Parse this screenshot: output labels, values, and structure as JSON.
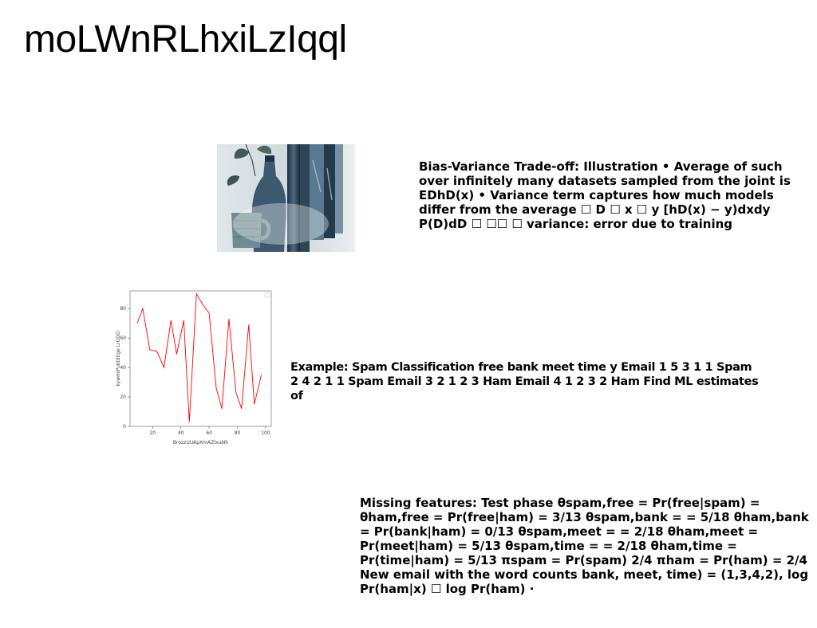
{
  "page": {
    "title": "moLWnRLhxiLzIqql"
  },
  "photo": {
    "icon": "photo-still-life-bottle-and-mug"
  },
  "paragraphs": {
    "bias_variance": "Bias-Variance Trade-off: Illustration • Average of such over infinitely many datasets sampled from the joint is EDhD(x) • Variance term captures how much models differ from the average ☐ D ☐ x ☐ y [hD(x) − y)dxdy P(D)dD ☐ ☐☐ ☐ variance: error due to training",
    "spam_example": "Example: Spam Classification free bank meet time y Email 1 5 3 1 1 Spam 2 4 2 1 1 Spam Email 3 2 1 2 3 Ham Email 4 1 2 3 2 Ham Find ML estimates of",
    "missing_features": "Missing features: Test phase θspam,free = Pr(free|spam) = θham,free = Pr(free|ham) = 3/13 θspam,bank = = 5/18 θham,bank = Pr(bank|ham) = 0/13 θspam,meet = = 2/18 θham,meet = Pr(meet|ham) = 5/13 θspam,time = = 2/18 θham,time = Pr(time|ham) = 5/13 πspam = Pr(spam) 2/4 πham = Pr(ham) = 2/4 New email with the word counts bank, meet, time) = (1,3,4,2), log Pr(ham|x) ☐ log Pr(ham) ·"
  },
  "chart_data": {
    "type": "line",
    "xlabel": "BrozzUUApXmAZtxaNh",
    "ylabel": "kywmiPuktdEge LrGOD",
    "xlim": [
      4,
      104
    ],
    "ylim": [
      0,
      92
    ],
    "x_ticks": [
      "20",
      "40",
      "60",
      "80",
      "100"
    ],
    "y_ticks": [
      "0",
      "20",
      "40",
      "60",
      "80"
    ],
    "series": [
      {
        "color": "#ff0000",
        "x": [
          9,
          13,
          18,
          23,
          28,
          33,
          37,
          42,
          46,
          51,
          56,
          60,
          65,
          69,
          74,
          79,
          83,
          88,
          92,
          97
        ],
        "y": [
          70,
          80,
          52,
          51,
          40,
          72,
          49,
          72,
          3,
          90,
          82,
          77,
          26,
          12,
          73,
          23,
          12,
          69,
          15,
          35
        ]
      }
    ],
    "grid": false,
    "legend": "none"
  }
}
